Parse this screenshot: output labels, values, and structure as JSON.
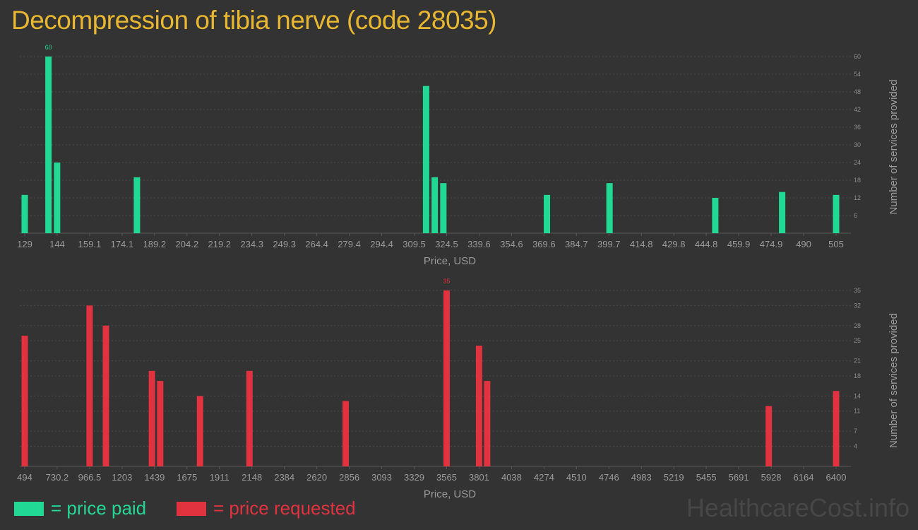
{
  "title": "Decompression of tibia nerve (code 28035)",
  "legend": {
    "paid_label": "= price paid",
    "requested_label": "= price requested"
  },
  "watermark": "HealthcareCost.info",
  "colors": {
    "paid": "#22d895",
    "requested": "#e0323f",
    "title": "#e8b731"
  },
  "chart_data": [
    {
      "type": "bar",
      "id": "paid",
      "xlabel": "Price, USD",
      "ylabel": "Number of services provided",
      "x_tick_labels": [
        "129",
        "144",
        "159.1",
        "174.1",
        "189.2",
        "204.2",
        "219.2",
        "234.3",
        "249.3",
        "264.4",
        "279.4",
        "294.4",
        "309.5",
        "324.5",
        "339.6",
        "354.6",
        "369.6",
        "384.7",
        "399.7",
        "414.8",
        "429.8",
        "444.8",
        "459.9",
        "474.9",
        "490",
        "505"
      ],
      "xlim": [
        129,
        505
      ],
      "y_ticks": [
        6,
        12,
        18,
        24,
        30,
        36,
        42,
        48,
        54,
        60
      ],
      "ylim": [
        0,
        60
      ],
      "bars": [
        {
          "x": 129,
          "y": 13
        },
        {
          "x": 140,
          "y": 60,
          "label": "60"
        },
        {
          "x": 144,
          "y": 24
        },
        {
          "x": 181,
          "y": 19
        },
        {
          "x": 315,
          "y": 50
        },
        {
          "x": 319,
          "y": 19
        },
        {
          "x": 323,
          "y": 17
        },
        {
          "x": 371,
          "y": 13
        },
        {
          "x": 400,
          "y": 17
        },
        {
          "x": 449,
          "y": 12
        },
        {
          "x": 480,
          "y": 14
        },
        {
          "x": 505,
          "y": 13
        }
      ],
      "grid": true
    },
    {
      "type": "bar",
      "id": "requested",
      "xlabel": "Price, USD",
      "ylabel": "Number of services provided",
      "x_tick_labels": [
        "494",
        "730.2",
        "966.5",
        "1203",
        "1439",
        "1675",
        "1911",
        "2148",
        "2384",
        "2620",
        "2856",
        "3093",
        "3329",
        "3565",
        "3801",
        "4038",
        "4274",
        "4510",
        "4746",
        "4983",
        "5219",
        "5455",
        "5691",
        "5928",
        "6164",
        "6400"
      ],
      "xlim": [
        494,
        6400
      ],
      "y_ticks": [
        4,
        7,
        11,
        14,
        18,
        21,
        25,
        28,
        32,
        35
      ],
      "ylim": [
        0,
        35
      ],
      "bars": [
        {
          "x": 494,
          "y": 26
        },
        {
          "x": 966.5,
          "y": 32
        },
        {
          "x": 1085,
          "y": 28
        },
        {
          "x": 1420,
          "y": 19
        },
        {
          "x": 1480,
          "y": 17
        },
        {
          "x": 1770,
          "y": 14
        },
        {
          "x": 2130,
          "y": 19
        },
        {
          "x": 2830,
          "y": 13
        },
        {
          "x": 3565,
          "y": 35,
          "label": "35"
        },
        {
          "x": 3801,
          "y": 24
        },
        {
          "x": 3860,
          "y": 17
        },
        {
          "x": 5910,
          "y": 12
        },
        {
          "x": 6400,
          "y": 15
        }
      ],
      "grid": true
    }
  ]
}
